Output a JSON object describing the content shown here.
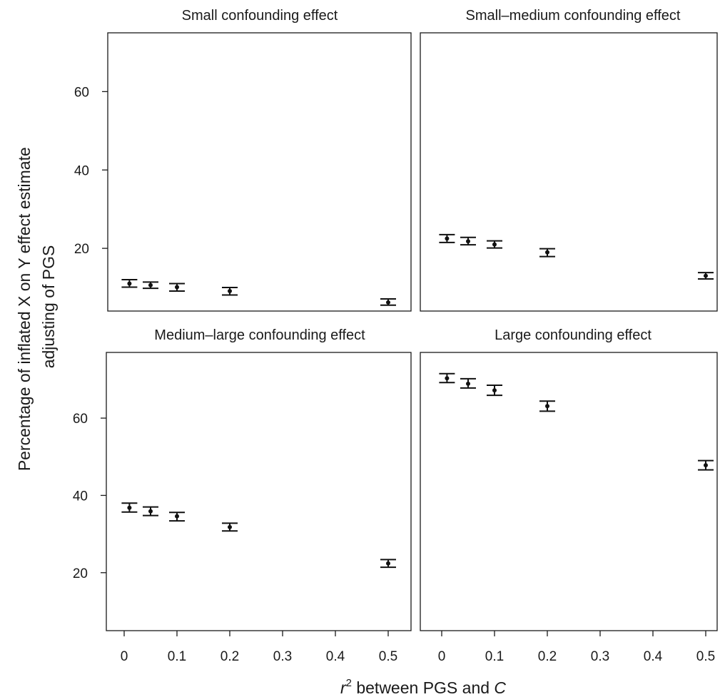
{
  "chart_data": {
    "type": "scatter",
    "subtype": "point-with-error-bars",
    "layout": "2x2 facets",
    "ylabel_line1": "Percentage of inflated X on Y effect estimate",
    "ylabel_line2": "adjusting of PGS",
    "xlabel_prefix": "r",
    "xlabel_sup": "2",
    "xlabel_middle": " between PGS and ",
    "xlabel_suffix": "C",
    "x_ticks": [
      0,
      0.1,
      0.2,
      0.3,
      0.4,
      0.5
    ],
    "x_tick_labels": [
      "0",
      "0.1",
      "0.2",
      "0.3",
      "0.4",
      "0.5"
    ],
    "xlim": [
      -0.018,
      0.545
    ],
    "top_row": {
      "ylim": [
        4,
        75
      ],
      "y_ticks": [
        20,
        40,
        60
      ]
    },
    "bottom_row": {
      "ylim": [
        5,
        77
      ],
      "y_ticks": [
        20,
        40,
        60
      ]
    },
    "panels": [
      {
        "title": "Small confounding effect",
        "points": [
          {
            "x": 0.01,
            "y": 11.0,
            "lower": 10.1,
            "upper": 12.0
          },
          {
            "x": 0.05,
            "y": 10.6,
            "lower": 9.8,
            "upper": 11.4
          },
          {
            "x": 0.1,
            "y": 10.1,
            "lower": 9.1,
            "upper": 11.0
          },
          {
            "x": 0.2,
            "y": 9.1,
            "lower": 8.1,
            "upper": 10.0
          },
          {
            "x": 0.5,
            "y": 6.2,
            "lower": 5.5,
            "upper": 7.1
          }
        ]
      },
      {
        "title": "Small–medium confounding effect",
        "points": [
          {
            "x": 0.01,
            "y": 22.5,
            "lower": 21.5,
            "upper": 23.5
          },
          {
            "x": 0.05,
            "y": 21.8,
            "lower": 20.9,
            "upper": 22.8
          },
          {
            "x": 0.1,
            "y": 21.0,
            "lower": 20.1,
            "upper": 21.9
          },
          {
            "x": 0.2,
            "y": 19.0,
            "lower": 17.9,
            "upper": 19.9
          },
          {
            "x": 0.5,
            "y": 13.0,
            "lower": 12.2,
            "upper": 13.8
          }
        ]
      },
      {
        "title": "Medium–large confounding effect",
        "points": [
          {
            "x": 0.01,
            "y": 36.8,
            "lower": 35.7,
            "upper": 38.0
          },
          {
            "x": 0.05,
            "y": 35.9,
            "lower": 34.8,
            "upper": 37.0
          },
          {
            "x": 0.1,
            "y": 34.6,
            "lower": 33.4,
            "upper": 35.6
          },
          {
            "x": 0.2,
            "y": 31.8,
            "lower": 30.8,
            "upper": 32.8
          },
          {
            "x": 0.5,
            "y": 22.4,
            "lower": 21.4,
            "upper": 23.4
          }
        ]
      },
      {
        "title": "Large confounding effect",
        "points": [
          {
            "x": 0.01,
            "y": 70.3,
            "lower": 69.2,
            "upper": 71.5
          },
          {
            "x": 0.05,
            "y": 68.9,
            "lower": 67.8,
            "upper": 70.2
          },
          {
            "x": 0.1,
            "y": 67.2,
            "lower": 65.9,
            "upper": 68.5
          },
          {
            "x": 0.2,
            "y": 63.1,
            "lower": 61.8,
            "upper": 64.4
          },
          {
            "x": 0.5,
            "y": 47.8,
            "lower": 46.6,
            "upper": 49.0
          }
        ]
      }
    ]
  }
}
